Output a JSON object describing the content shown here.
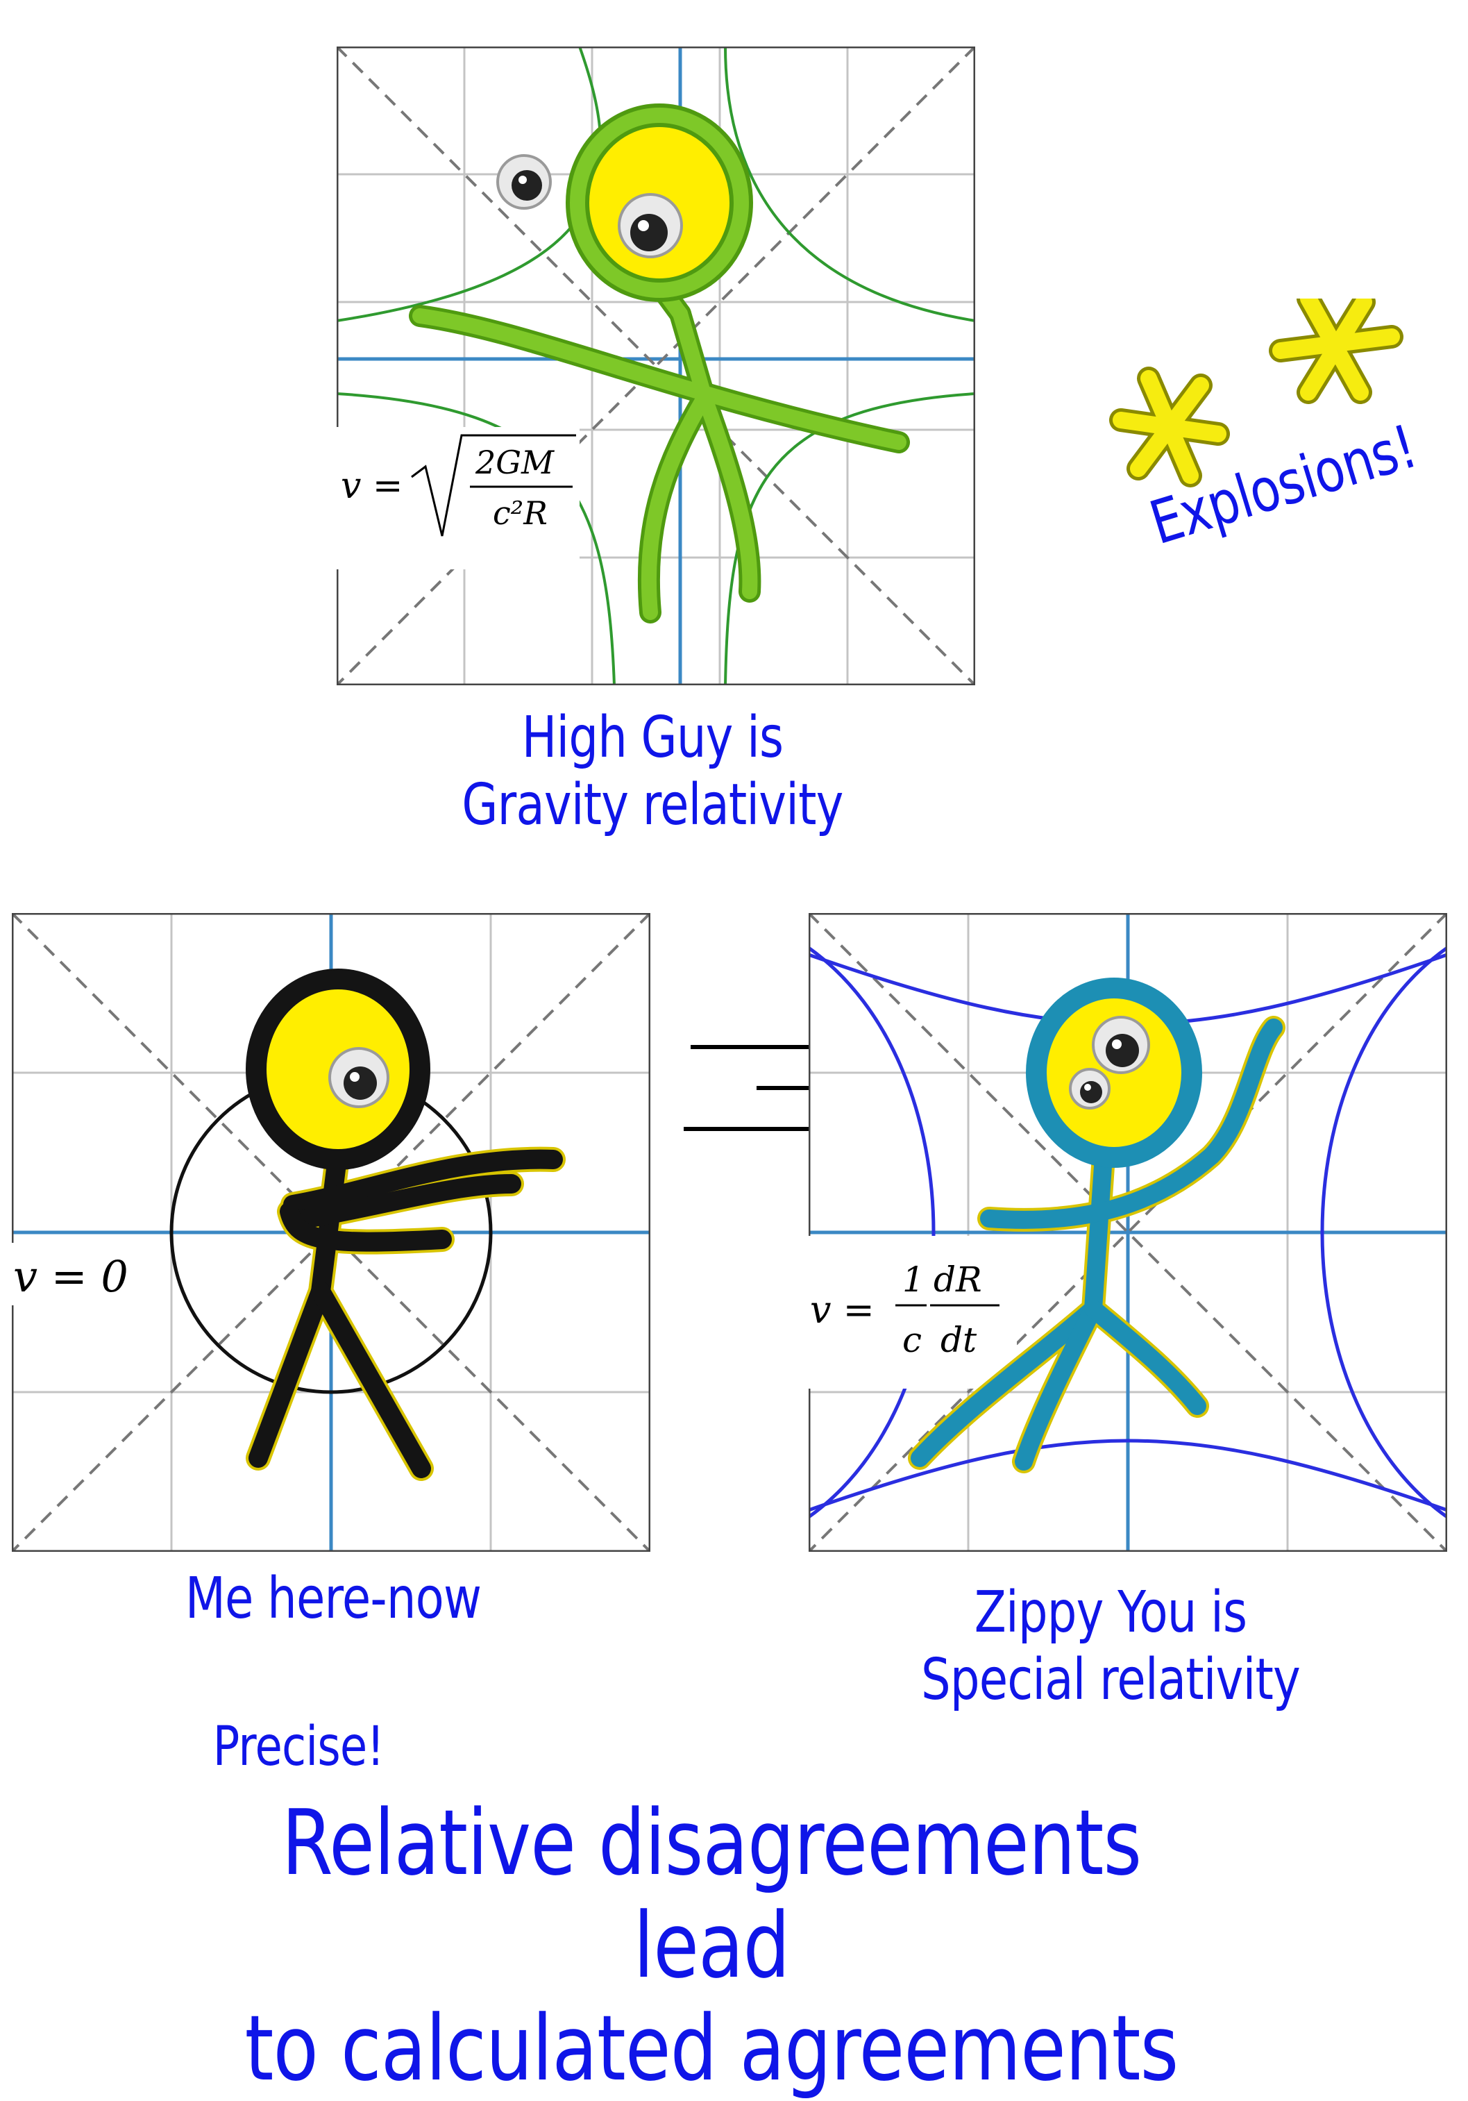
{
  "colors": {
    "caption_blue": "#0f15e8",
    "grid_gray": "#c4c4c4",
    "axis_blue": "#3b88c4",
    "gravity_green": "#2f9a2f",
    "special_blue": "#2a2ee0",
    "pipe_green": "#7ec828",
    "pipe_black": "#141414",
    "pipe_teal": "#1d8fb4",
    "head_yellow": "#ffee00"
  },
  "panels": {
    "top": {
      "equation": {
        "lhs": "v =",
        "numerator": "2GM",
        "denominator": "c²R"
      },
      "caption": "High Guy is\nGravity relativity",
      "figure_icon": "green-pipe-cleaner-stick-figure"
    },
    "left": {
      "equation": {
        "text": "v = 0"
      },
      "caption": "Me here-now",
      "figure_icon": "black-pipe-cleaner-stick-figure"
    },
    "right": {
      "equation": {
        "lhs": "v =",
        "frac1_num": "1",
        "frac1_den": "c",
        "frac2_num": "dR",
        "frac2_den": "dt"
      },
      "caption": "Zippy You is\nSpecial relativity",
      "figure_icon": "teal-pipe-cleaner-stick-figure"
    }
  },
  "explosions": {
    "label": "Explosions!",
    "icon": "yellow-asterisk-explosion-icon"
  },
  "footer": {
    "precise": "Precise!",
    "headline": "Relative disagreements lead\nto calculated agreements"
  }
}
